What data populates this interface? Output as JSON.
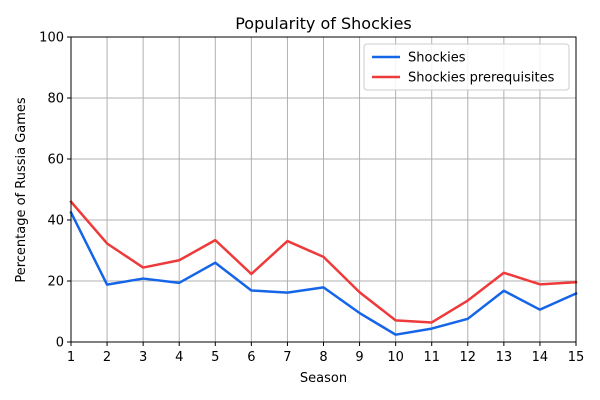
{
  "chart_data": {
    "type": "line",
    "title": "Popularity of Shockies",
    "xlabel": "Season",
    "ylabel": "Percentage of Russia Games",
    "x": [
      1,
      2,
      3,
      4,
      5,
      6,
      7,
      8,
      9,
      10,
      11,
      12,
      13,
      14,
      15
    ],
    "xlim": [
      1,
      15
    ],
    "ylim": [
      0,
      100
    ],
    "xticks": [
      1,
      2,
      3,
      4,
      5,
      6,
      7,
      8,
      9,
      10,
      11,
      12,
      13,
      14,
      15
    ],
    "yticks": [
      0,
      20,
      40,
      60,
      80,
      100
    ],
    "grid": true,
    "legend_position": "top-right",
    "series": [
      {
        "name": "Shockies",
        "color": "#1565e8",
        "values": [
          42.5,
          18.8,
          20.8,
          19.4,
          26.0,
          16.9,
          16.2,
          17.9,
          9.5,
          2.4,
          4.4,
          7.6,
          16.8,
          10.6,
          15.9
        ]
      },
      {
        "name": "Shockies prerequisites",
        "color": "#ee3a3a",
        "values": [
          46.0,
          32.3,
          24.4,
          26.8,
          33.4,
          22.3,
          33.1,
          27.9,
          16.3,
          7.1,
          6.4,
          13.6,
          22.7,
          18.9,
          19.6
        ]
      }
    ]
  }
}
